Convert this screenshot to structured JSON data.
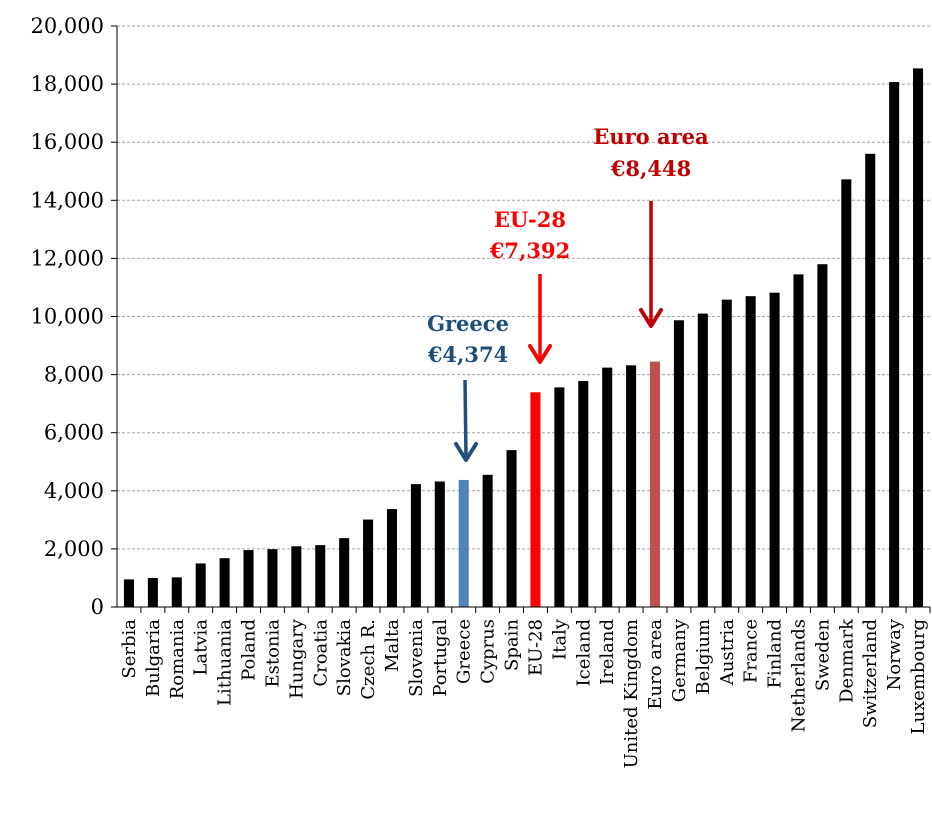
{
  "chart_data": {
    "type": "bar",
    "title": "",
    "xlabel": "",
    "ylabel": "",
    "ylim": [
      0,
      20000
    ],
    "yticks": [
      0,
      2000,
      4000,
      6000,
      8000,
      10000,
      12000,
      14000,
      16000,
      18000,
      20000
    ],
    "ytick_labels": [
      "0",
      "2,000",
      "4,000",
      "6,000",
      "8,000",
      "10,000",
      "12,000",
      "14,000",
      "16,000",
      "18,000",
      "20,000"
    ],
    "grid": "horizontal dashed",
    "categories": [
      "Serbia",
      "Bulgaria",
      "Romania",
      "Latvia",
      "Lithuania",
      "Poland",
      "Estonia",
      "Hungary",
      "Croatia",
      "Slovakia",
      "Czech R.",
      "Malta",
      "Slovenia",
      "Portugal",
      "Greece",
      "Cyprus",
      "Spain",
      "EU-28",
      "Italy",
      "Iceland",
      "Ireland",
      "United Kingdom",
      "Euro area",
      "Germany",
      "Belgium",
      "Austria",
      "France",
      "Finland",
      "Netherlands",
      "Sweden",
      "Denmark",
      "Switzerland",
      "Norway",
      "Luxembourg"
    ],
    "values": [
      950,
      1000,
      1020,
      1500,
      1680,
      1960,
      1990,
      2090,
      2130,
      2370,
      3010,
      3370,
      4230,
      4320,
      4374,
      4550,
      5400,
      7392,
      7560,
      7780,
      8240,
      8320,
      8448,
      9870,
      10100,
      10580,
      10700,
      10820,
      11450,
      11800,
      14720,
      15600,
      18070,
      18540
    ],
    "colors": {
      "default": "#000000",
      "Greece": "#4f81bd",
      "EU-28": "#ff0000",
      "Euro area": "#c0504d"
    },
    "annotations": [
      {
        "target": "Greece",
        "lines": [
          "Greece",
          "€4,374"
        ],
        "color": "#1f4e79"
      },
      {
        "target": "EU-28",
        "lines": [
          "EU-28",
          "€7,392"
        ],
        "color": "#ff0000"
      },
      {
        "target": "Euro area",
        "lines": [
          "Euro area",
          "€8,448"
        ],
        "color": "#c00000"
      }
    ]
  }
}
